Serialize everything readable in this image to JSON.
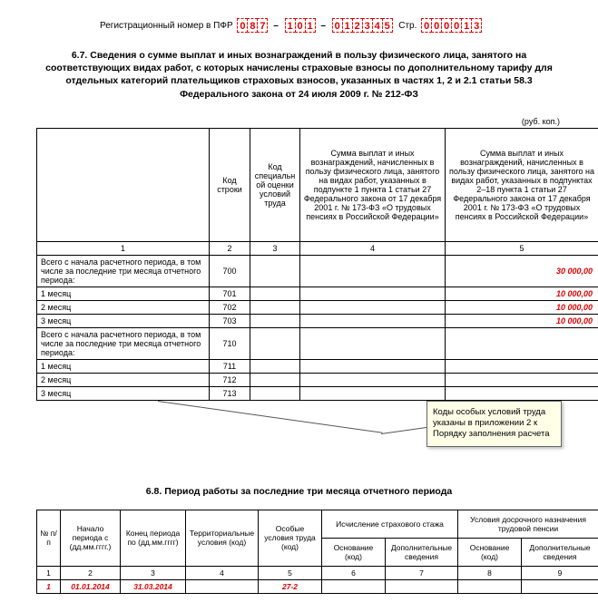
{
  "reg": {
    "label": "Регистрационный номер в ПФР",
    "group1": [
      "0",
      "8",
      "7"
    ],
    "group2": [
      "1",
      "0",
      "1"
    ],
    "group3": [
      "0",
      "1",
      "2",
      "3",
      "4",
      "5"
    ],
    "page_label": "Стр.",
    "page_group": [
      "0",
      "0",
      "0",
      "0",
      "1",
      "3"
    ]
  },
  "section67": {
    "title": "6.7. Сведения о сумме выплат и иных вознаграждений в пользу физического лица, занятого на соответствующих видах работ, с которых начислены страховые взносы по дополнительному тарифу для отдельных категорий плательщиков страховых взносов, указанных в частях 1, 2 и 2.1 статьи 58.3 Федерального закона от 24 июля 2009 г. № 212-ФЗ",
    "rub": "(руб. коп.)",
    "headers": {
      "c1": "",
      "c2": "Код строки",
      "c3": "Код специальной оценки условий труда",
      "c4": "Сумма выплат и иных вознаграждений, начисленных в пользу физического лица, занятого на видах работ, указанных в подпункте 1 пункта 1 статьи 27 Федерального закона от 17 декабря 2001 г. № 173-ФЗ «О трудовых пенсиях в Российской Федерации»",
      "c5": "Сумма выплат и иных вознаграждений, начисленных в пользу физического лица, занятого на видах работ, указанных в подпунктах 2–18 пункта 1 статьи 27 Федерального закона от 17 декабря 2001 г. № 173-ФЗ «О трудовых пенсиях в Российской Федерации»"
    },
    "numrow": {
      "c1": "1",
      "c2": "2",
      "c3": "3",
      "c4": "4",
      "c5": "5"
    },
    "rows": [
      {
        "label": "Всего с начала расчетного периода, в том числе за последние три месяца отчетного периода:",
        "code": "700",
        "c3": "",
        "c4": "",
        "c5": "",
        "c5red": "30 000,00",
        "rowh": "28px"
      },
      {
        "label": "1 месяц",
        "code": "701",
        "c3": "",
        "c4": "",
        "c5": "",
        "c5red": "10 000,00",
        "rowh": ""
      },
      {
        "label": "2 месяц",
        "code": "702",
        "c3": "",
        "c4": "",
        "c5": "",
        "c5red": "10 000,00",
        "rowh": ""
      },
      {
        "label": "3 месяц",
        "code": "703",
        "c3": "",
        "c4": "",
        "c5": "",
        "c5red": "10 000,00",
        "rowh": ""
      },
      {
        "label": "Всего с начала расчетного периода, в том числе за последние три месяца отчетного периода:",
        "code": "710",
        "c3": "",
        "c4": "",
        "c5": "",
        "c5red": "",
        "rowh": "28px"
      },
      {
        "label": "1 месяц",
        "code": "711",
        "c3": "",
        "c4": "",
        "c5": "",
        "c5red": "",
        "rowh": ""
      },
      {
        "label": "2 месяц",
        "code": "712",
        "c3": "",
        "c4": "",
        "c5": "",
        "c5red": "",
        "rowh": ""
      },
      {
        "label": "3 месяц",
        "code": "713",
        "c3": "",
        "c4": "",
        "c5": "",
        "c5red": "",
        "rowh": ""
      }
    ],
    "colwidths": {
      "c1": "190",
      "c2": "45",
      "c3": "55",
      "c4": "160",
      "c5": "169"
    }
  },
  "callout": {
    "text": "Коды особых условий труда указаны в приложении 2 к Порядку заполнения расчета"
  },
  "section68": {
    "title": "6.8. Период работы за последние три месяца отчетного периода",
    "headers": {
      "c1": "№ п/п",
      "c2": "Начало периода с (дд.мм.гггг.)",
      "c3": "Конец периода по (дд.мм.гггг)",
      "c4": "Территориальные условия (код)",
      "c5": "Особые условия труда (код)",
      "g6": "Исчисление страхового стажа",
      "g7": "Условия досрочного назначения трудовой пенсии",
      "c6": "Основание (код)",
      "c7": "Дополнительные сведения",
      "c8": "Основание (код)",
      "c9": "Дополнительные сведения"
    },
    "numrow": {
      "c1": "1",
      "c2": "2",
      "c3": "3",
      "c4": "4",
      "c5": "5",
      "c6": "6",
      "c7": "7",
      "c8": "8",
      "c9": "9"
    },
    "row": {
      "c1": "1",
      "c2": "01.01.2014",
      "c3": "31.03.2014",
      "c4": "",
      "c5": "27-2",
      "c6": "",
      "c7": "",
      "c8": "",
      "c9": ""
    },
    "colwidths": {
      "c1": "26",
      "c2": "66",
      "c3": "72",
      "c4": "80",
      "c5": "70",
      "c6": "70",
      "c7": "80",
      "c8": "70",
      "c9": "85"
    }
  }
}
